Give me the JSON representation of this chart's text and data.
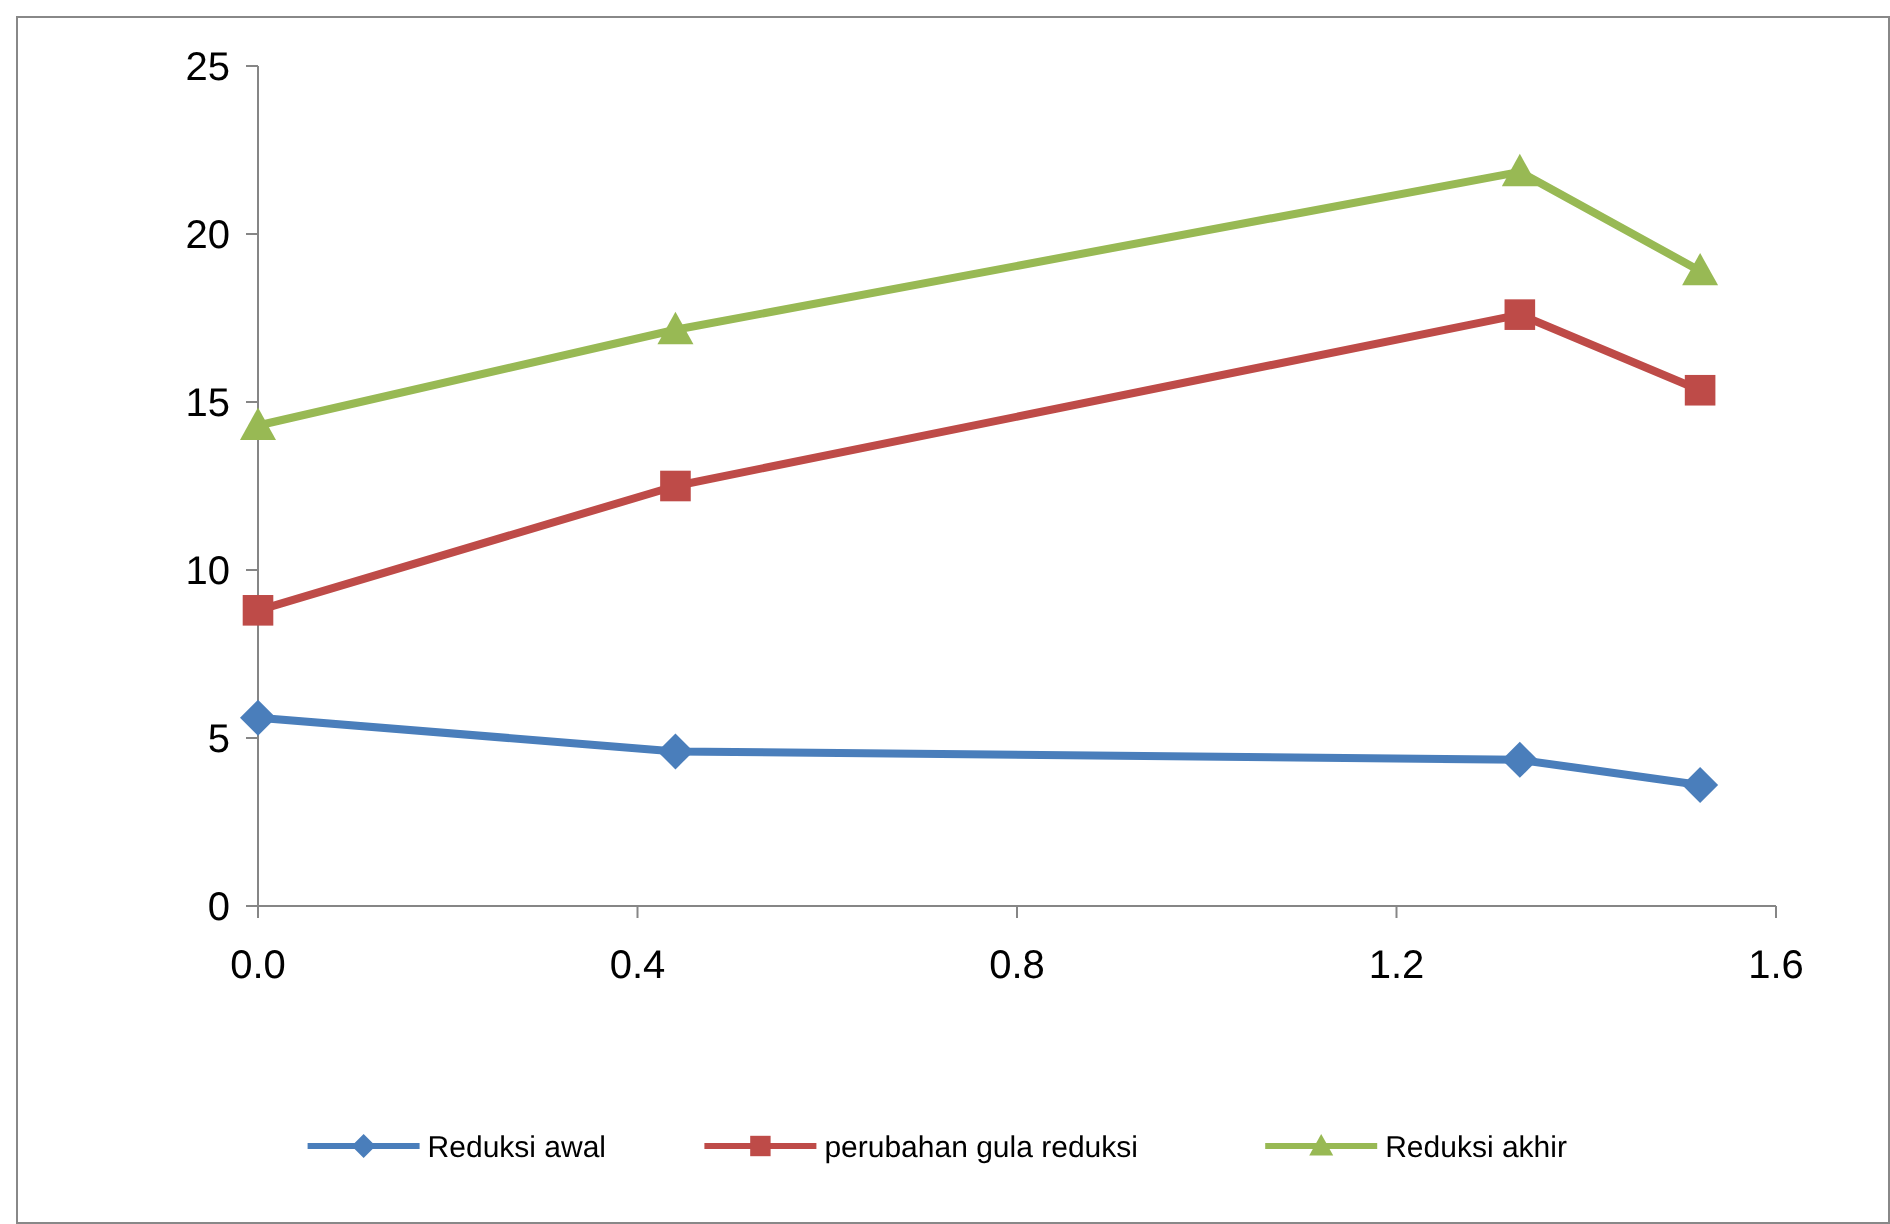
{
  "chart_data": {
    "type": "line",
    "x": [
      0,
      0.44,
      1.33,
      1.52
    ],
    "series": [
      {
        "name": "Reduksi awal",
        "color": "#4a7ebb",
        "marker": "diamond",
        "values": [
          5.6,
          4.6,
          4.35,
          3.6
        ]
      },
      {
        "name": "perubahan gula reduksi",
        "color": "#be4b48",
        "marker": "square",
        "values": [
          8.8,
          12.5,
          17.6,
          15.35
        ]
      },
      {
        "name": "Reduksi akhir",
        "color": "#98b954",
        "marker": "triangle",
        "values": [
          14.3,
          17.15,
          21.85,
          18.9
        ]
      }
    ],
    "xlim": [
      0,
      1.6
    ],
    "xticks": [
      {
        "value": 0,
        "label": "0.0"
      },
      {
        "value": 0.4,
        "label": "0.4"
      },
      {
        "value": 0.8,
        "label": "0.8"
      },
      {
        "value": 1.2,
        "label": "1.2"
      },
      {
        "value": 1.6,
        "label": "1.6"
      }
    ],
    "ylim": [
      0,
      25
    ],
    "yticks": [
      0,
      5,
      10,
      15,
      20,
      25
    ],
    "grid": false,
    "legend": "bottom",
    "line_style": "solid"
  }
}
